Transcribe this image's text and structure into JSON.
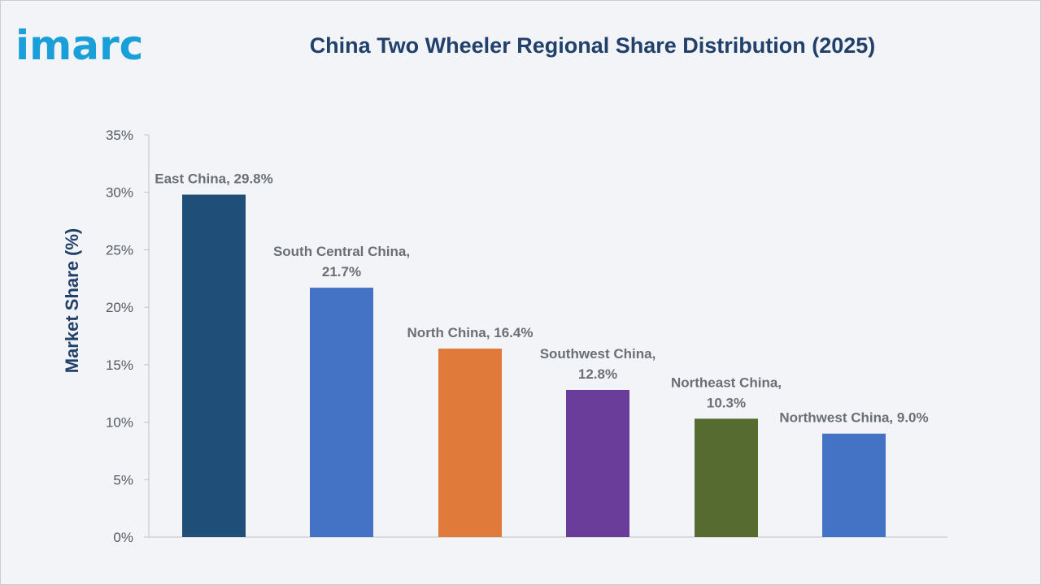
{
  "logo": {
    "text": "imarc"
  },
  "colors": [
    "#1f4e79",
    "#4472c4",
    "#e07a3a",
    "#6a3d9a",
    "#556b2f",
    "#4472c4"
  ],
  "chart_data": {
    "type": "bar",
    "title": "China Two Wheeler Regional Share Distribution (2025)",
    "ylabel": "Market Share (%)",
    "xlabel": "",
    "ylim": [
      0,
      35
    ],
    "yticks": [
      "0%",
      "5%",
      "10%",
      "15%",
      "20%",
      "25%",
      "30%",
      "35%"
    ],
    "categories": [
      "East China",
      "South Central China",
      "North China",
      "Southwest China",
      "Northeast China",
      "Northwest China"
    ],
    "values": [
      29.8,
      21.7,
      16.4,
      12.8,
      10.3,
      9.0
    ],
    "data_labels": [
      [
        "East China, 29.8%"
      ],
      [
        "South Central China,",
        "21.7%"
      ],
      [
        "North China, 16.4%"
      ],
      [
        "Southwest China,",
        "12.8%"
      ],
      [
        "Northeast China,",
        "10.3%"
      ],
      [
        "Northwest China, 9.0%"
      ]
    ],
    "grid": false,
    "legend": "none"
  }
}
